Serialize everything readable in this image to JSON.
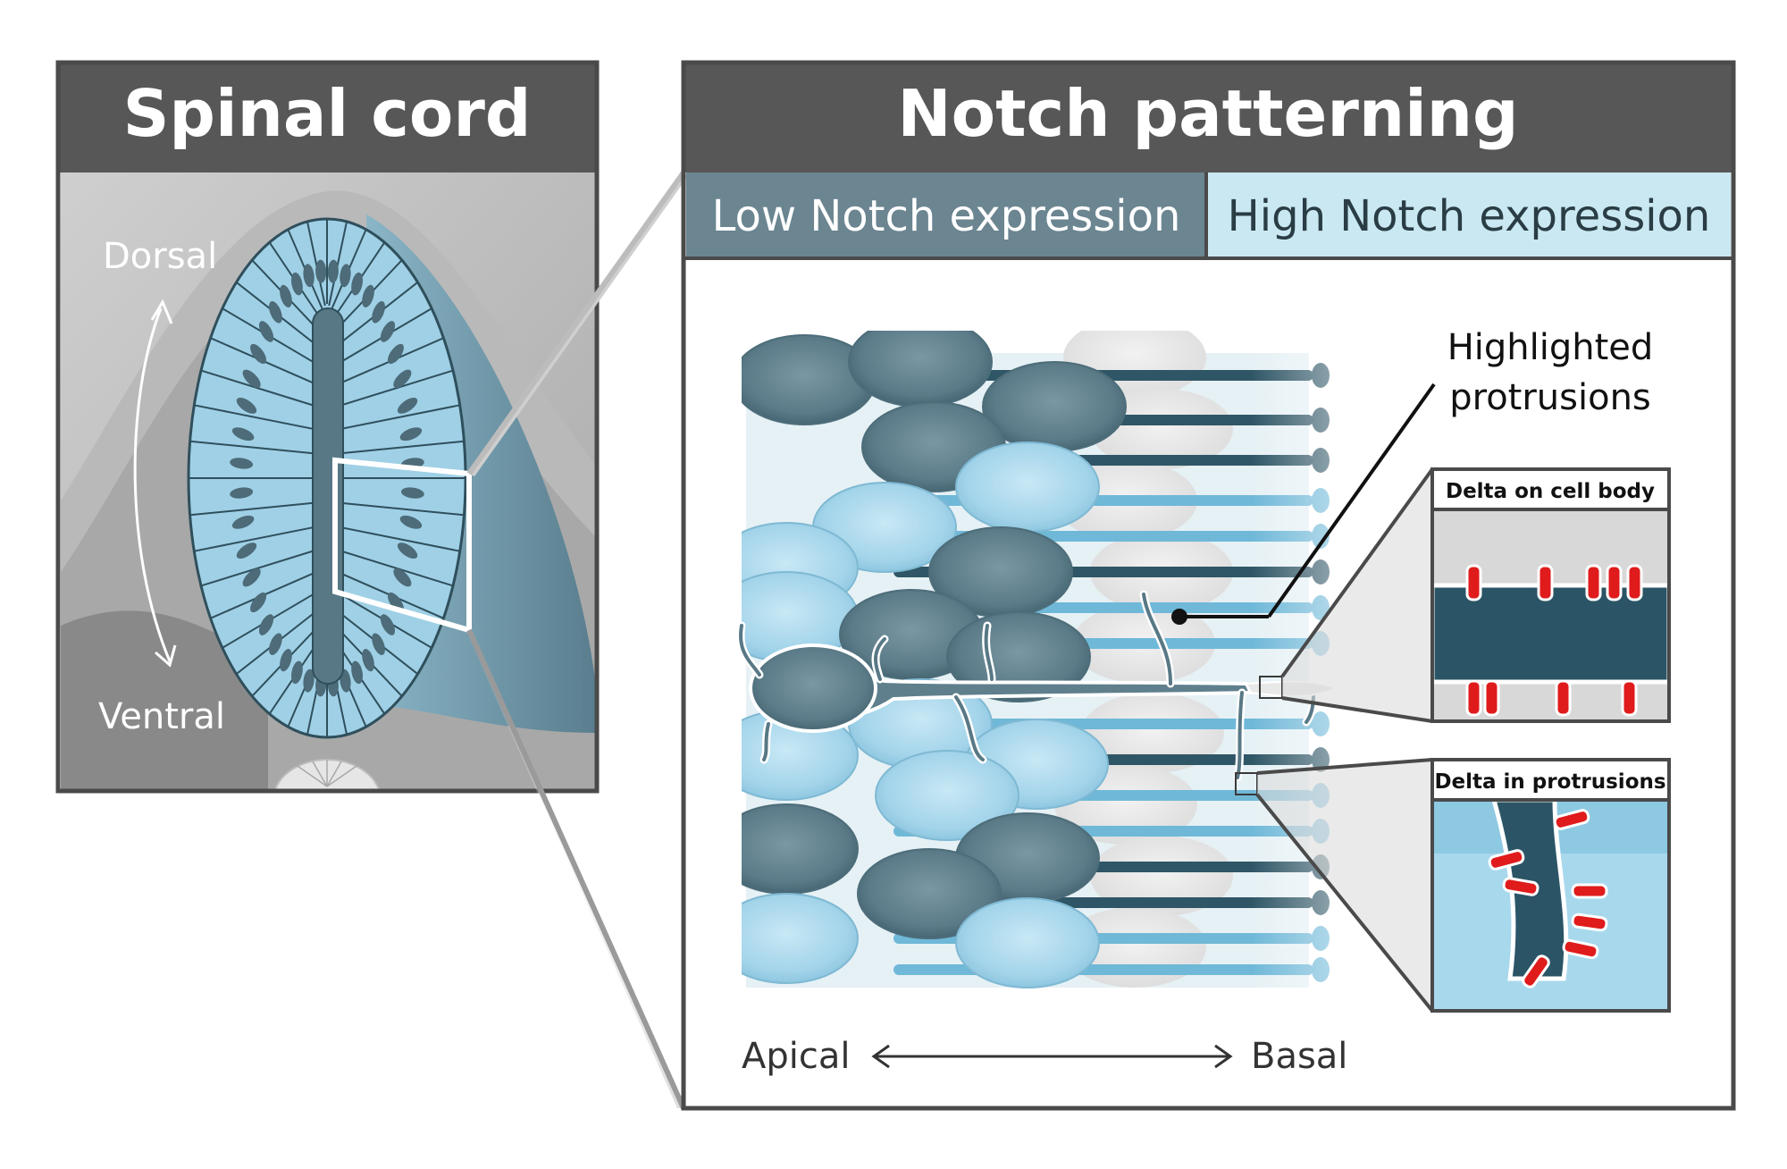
{
  "left_panel": {
    "title": "Spinal cord",
    "dorsal_label": "Dorsal",
    "ventral_label": "Ventral"
  },
  "right_panel": {
    "title": "Notch patterning",
    "legend_low": "Low Notch expression",
    "legend_high": "High Notch expression",
    "callout_line1": "Highlighted",
    "callout_line2": "protrusions",
    "inset_top_title": "Delta on cell body",
    "inset_bottom_title": "Delta in protrusions",
    "axis_apical": "Apical",
    "axis_basal": "Basal"
  },
  "colors": {
    "header_gray": "#575757",
    "low_notch": "#6b8591",
    "high_notch": "#c9e8f2",
    "dark_cell": "#587885",
    "light_cell": "#9fd0e6",
    "delta_red": "#e01b1b",
    "protrusion_dark": "#2b5566"
  }
}
